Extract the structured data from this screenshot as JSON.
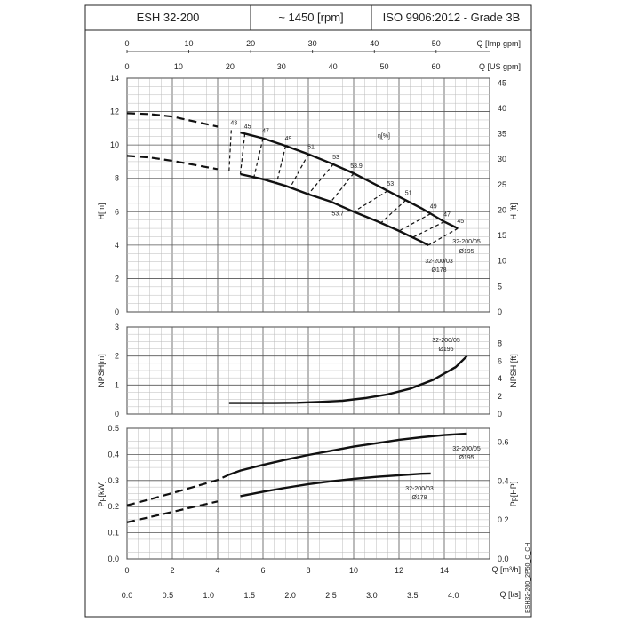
{
  "header": {
    "model": "ESH 32-200",
    "speed": "~ 1450 [rpm]",
    "standard": "ISO 9906:2012 - Grade 3B"
  },
  "side_code": "ESH32-200_2P50_C_CH",
  "axes": {
    "q_m3h": {
      "label": "Q [m³/h]",
      "ticks": [
        "0",
        "2",
        "4",
        "6",
        "8",
        "10",
        "12",
        "14"
      ]
    },
    "q_ls": {
      "label": "Q [l/s]",
      "ticks": [
        "0.0",
        "0.5",
        "1.0",
        "1.5",
        "2.0",
        "2.5",
        "3.0",
        "3.5",
        "4.0"
      ]
    },
    "q_imp": {
      "label": "Q [Imp gpm]",
      "ticks": [
        "0",
        "10",
        "20",
        "30",
        "40",
        "50"
      ]
    },
    "q_us": {
      "label": "Q [US gpm]",
      "ticks": [
        "0",
        "10",
        "20",
        "30",
        "40",
        "50",
        "60"
      ]
    },
    "h_m": {
      "label": "H[m]",
      "ticks": [
        "0",
        "2",
        "4",
        "6",
        "8",
        "10",
        "12",
        "14"
      ]
    },
    "h_ft": {
      "label": "H [ft]",
      "ticks": [
        "0",
        "5",
        "10",
        "15",
        "20",
        "25",
        "30",
        "35",
        "40",
        "45"
      ]
    },
    "npsh_m": {
      "label": "NPSH[m]",
      "ticks": [
        "0",
        "1",
        "2",
        "3"
      ]
    },
    "npsh_ft": {
      "label": "NPSH [ft]",
      "ticks": [
        "0",
        "2",
        "4",
        "6",
        "8"
      ]
    },
    "p_kw": {
      "label": "Pp[kW]",
      "ticks": [
        "0.0",
        "0.1",
        "0.2",
        "0.3",
        "0.4",
        "0.5"
      ]
    },
    "p_hp": {
      "label": "Pp[HP]",
      "ticks": [
        "0.0",
        "0.2",
        "0.4",
        "0.6"
      ]
    }
  },
  "labels": {
    "eta": "η[%]",
    "curve_195_top": "32-200/05",
    "curve_195_bot": "Ø195",
    "curve_178_top": "32-200/03",
    "curve_178_bot": "Ø178"
  },
  "chart_data": [
    {
      "type": "line",
      "xlabel": "Q [m³/h]",
      "ylabel": "H[m]",
      "xlim": [
        0,
        16
      ],
      "ylim": [
        0,
        14
      ],
      "series": [
        {
          "name": "32-200/05 Ø195",
          "x": [
            0,
            1,
            2,
            3,
            4,
            5,
            6,
            7,
            8,
            9,
            10,
            11,
            12,
            13,
            14,
            14.6
          ],
          "y": [
            11.9,
            11.85,
            11.7,
            11.4,
            11.1,
            10.75,
            10.4,
            9.95,
            9.45,
            8.9,
            8.3,
            7.6,
            6.9,
            6.2,
            5.4,
            5.0
          ]
        },
        {
          "name": "32-200/03 Ø178",
          "x": [
            0,
            1,
            2,
            3,
            4,
            5,
            6,
            7,
            8,
            9,
            10,
            11,
            12,
            13,
            13.3
          ],
          "y": [
            9.35,
            9.25,
            9.05,
            8.8,
            8.55,
            8.25,
            7.95,
            7.55,
            7.05,
            6.6,
            6.0,
            5.45,
            4.85,
            4.2,
            4.0
          ]
        }
      ],
      "efficiency_lines": [
        {
          "label": "43",
          "q_top": 4.6,
          "q_bot": 4.5
        },
        {
          "label": "45",
          "q_top": 5.2,
          "q_bot": 5.0
        },
        {
          "label": "47",
          "q_top": 6.0,
          "q_bot": 5.6
        },
        {
          "label": "49",
          "q_top": 7.0,
          "q_bot": 6.6
        },
        {
          "label": "51",
          "q_top": 8.0,
          "q_bot": 7.2
        },
        {
          "label": "53",
          "q_top": 9.1,
          "q_bot": 8.0
        },
        {
          "label": "53.9",
          "q_top": 10.0,
          "q_bot": 9.0
        },
        {
          "label": "53",
          "q_top": 11.5,
          "q_bot": 10.0
        },
        {
          "label": "51",
          "q_top": 12.3,
          "q_bot": 11.2
        },
        {
          "label": "49",
          "q_top": 13.4,
          "q_bot": 12.0
        },
        {
          "label": "47",
          "q_top": 14.0,
          "q_bot": 12.6
        },
        {
          "label": "45",
          "q_top": 14.6,
          "q_bot": 13.3
        }
      ],
      "extra_label": {
        "text": "53.7",
        "q": 9.3,
        "h": 6.3
      }
    },
    {
      "type": "line",
      "xlabel": "Q [m³/h]",
      "ylabel": "NPSH[m]",
      "xlim": [
        0,
        16
      ],
      "ylim": [
        0,
        3
      ],
      "series": [
        {
          "name": "32-200/05 Ø195",
          "x": [
            4.5,
            5.5,
            6.5,
            7.5,
            8.5,
            9.5,
            10.5,
            11.5,
            12.5,
            13.5,
            14.5,
            15.0
          ],
          "y": [
            0.38,
            0.38,
            0.38,
            0.39,
            0.42,
            0.46,
            0.55,
            0.68,
            0.88,
            1.18,
            1.62,
            2.0
          ]
        }
      ]
    },
    {
      "type": "line",
      "xlabel": "Q [m³/h]",
      "ylabel": "Pp[kW]",
      "xlim": [
        0,
        16
      ],
      "ylim": [
        0,
        0.5
      ],
      "series": [
        {
          "name": "32-200/05 Ø195",
          "x": [
            0,
            1,
            2,
            3,
            4,
            4.5,
            5,
            6,
            7,
            8,
            9,
            10,
            11,
            12,
            13,
            14,
            15
          ],
          "y": [
            0.205,
            0.228,
            0.252,
            0.277,
            0.302,
            0.322,
            0.338,
            0.36,
            0.38,
            0.398,
            0.414,
            0.43,
            0.443,
            0.456,
            0.466,
            0.474,
            0.48
          ]
        },
        {
          "name": "32-200/03 Ø178",
          "x": [
            0,
            1,
            2,
            3,
            4,
            5,
            6,
            7,
            8,
            9,
            10,
            11,
            12,
            13,
            13.4
          ],
          "y": [
            0.14,
            0.16,
            0.18,
            0.2,
            0.22,
            0.24,
            0.257,
            0.272,
            0.286,
            0.297,
            0.306,
            0.314,
            0.32,
            0.326,
            0.327
          ]
        }
      ]
    }
  ]
}
